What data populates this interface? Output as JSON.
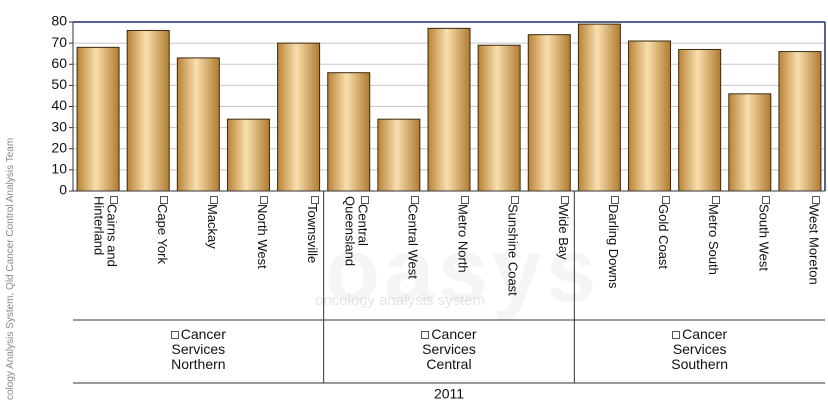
{
  "chart_data": {
    "type": "bar",
    "credit": "cology Analysis System, Qld Cancer Control Analysis Team",
    "watermark": "oasys",
    "watermark_subtitle": "oncology analysis system",
    "period": "2011",
    "groups": [
      {
        "label": "Cancer Services Northern",
        "categories": [
          "Cairns and Hinterland",
          "Cape York",
          "Mackay",
          "North West",
          "Townsville"
        ],
        "values": [
          68,
          76,
          63,
          34,
          70
        ]
      },
      {
        "label": "Cancer Services Central",
        "categories": [
          "Central Queensland",
          "Central West",
          "Metro North",
          "Sunshine Coast",
          "Wide Bay"
        ],
        "values": [
          56,
          34,
          77,
          69,
          74
        ]
      },
      {
        "label": "Cancer Services Southern",
        "categories": [
          "Darling Downs",
          "Gold Coast",
          "Metro South",
          "South West",
          "West Moreton"
        ],
        "values": [
          79,
          71,
          67,
          46,
          66
        ]
      }
    ],
    "ylim": [
      0,
      80
    ],
    "yticks": [
      0,
      10,
      20,
      30,
      40,
      50,
      60,
      70,
      80
    ],
    "grid": true
  }
}
